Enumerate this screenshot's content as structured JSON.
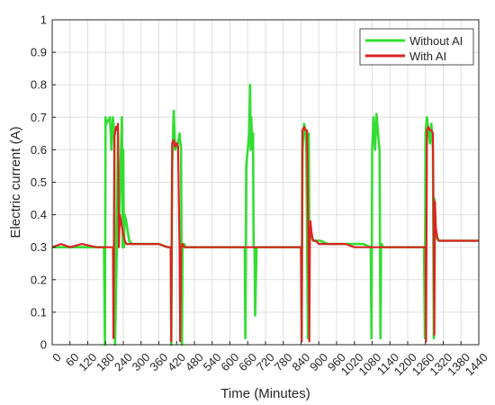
{
  "chart_data": {
    "type": "line",
    "title": "",
    "xlabel": "Time (Minutes)",
    "ylabel": "Electric current (A)",
    "xlim": [
      0,
      1440
    ],
    "ylim": [
      0,
      1
    ],
    "x_ticks": [
      0,
      60,
      120,
      180,
      240,
      300,
      360,
      420,
      480,
      540,
      600,
      660,
      720,
      780,
      840,
      900,
      960,
      1020,
      1080,
      1140,
      1200,
      1260,
      1320,
      1380,
      1440
    ],
    "y_ticks": [
      0,
      0.1,
      0.2,
      0.3,
      0.4,
      0.5,
      0.6,
      0.7,
      0.8,
      0.9,
      1
    ],
    "x_tick_labels": [
      "0",
      "60",
      "120",
      "180",
      "240",
      "300",
      "360",
      "420",
      "480",
      "540",
      "600",
      "660",
      "720",
      "780",
      "840",
      "900",
      "960",
      "1020",
      "1080",
      "1140",
      "1200",
      "1260",
      "1320",
      "1380",
      "1440"
    ],
    "y_tick_labels": [
      "0",
      "0.1",
      "0.2",
      "0.3",
      "0.4",
      "0.5",
      "0.6",
      "0.7",
      "0.8",
      "0.9",
      "1"
    ],
    "grid": true,
    "legend_position": "top-right",
    "series": [
      {
        "name": "Without AI",
        "color": "#33dd33",
        "x": [
          0,
          30,
          60,
          100,
          150,
          175,
          178,
          180,
          182,
          195,
          200,
          205,
          210,
          212,
          218,
          222,
          225,
          235,
          238,
          240,
          242,
          245,
          250,
          255,
          260,
          270,
          285,
          300,
          330,
          360,
          390,
          400,
          402,
          405,
          410,
          415,
          425,
          430,
          435,
          438,
          440,
          445,
          450,
          480,
          510,
          540,
          570,
          600,
          630,
          650,
          652,
          655,
          660,
          665,
          668,
          670,
          672,
          675,
          678,
          680,
          683,
          685,
          690,
          700,
          730,
          760,
          790,
          820,
          840,
          842,
          845,
          850,
          855,
          858,
          860,
          863,
          866,
          868,
          870,
          872,
          875,
          880,
          890,
          905,
          930,
          960,
          990,
          1020,
          1050,
          1075,
          1078,
          1080,
          1085,
          1090,
          1095,
          1100,
          1105,
          1108,
          1110,
          1113,
          1115,
          1120,
          1150,
          1180,
          1210,
          1240,
          1255,
          1258,
          1260,
          1265,
          1270,
          1275,
          1280,
          1285,
          1288,
          1290,
          1293,
          1295,
          1305,
          1320,
          1350,
          1380,
          1410,
          1440
        ],
        "y": [
          0.3,
          0.3,
          0.3,
          0.3,
          0.3,
          0.3,
          0,
          0.7,
          0.68,
          0.7,
          0.6,
          0.7,
          0.65,
          0,
          0.3,
          0.65,
          0.35,
          0.7,
          0.3,
          0.6,
          0.3,
          0.4,
          0.38,
          0.35,
          0.32,
          0.31,
          0.31,
          0.31,
          0.31,
          0.31,
          0.3,
          0.3,
          0,
          0.55,
          0.72,
          0.6,
          0.62,
          0.65,
          0.6,
          0,
          0.3,
          0.31,
          0.3,
          0.3,
          0.3,
          0.3,
          0.3,
          0.3,
          0.3,
          0.3,
          0.02,
          0.55,
          0.6,
          0.65,
          0.8,
          0.6,
          0.7,
          0.6,
          0.65,
          0.3,
          0.3,
          0.09,
          0.3,
          0.3,
          0.3,
          0.3,
          0.3,
          0.3,
          0.3,
          0.02,
          0.6,
          0.68,
          0.66,
          0.6,
          0.35,
          0.02,
          0.65,
          0.3,
          0.38,
          0.36,
          0.33,
          0.32,
          0.32,
          0.32,
          0.31,
          0.31,
          0.31,
          0.31,
          0.31,
          0.3,
          0.02,
          0.6,
          0.7,
          0.6,
          0.71,
          0.65,
          0.6,
          0.02,
          0.3,
          0.31,
          0.3,
          0.3,
          0.3,
          0.3,
          0.3,
          0.3,
          0.3,
          0.02,
          0.65,
          0.7,
          0.66,
          0.62,
          0.68,
          0.6,
          0.02,
          0.45,
          0.35,
          0.33,
          0.32,
          0.32,
          0.32,
          0.32,
          0.32,
          0.32
        ]
      },
      {
        "name": "With AI",
        "color": "#dd2222",
        "x": [
          0,
          30,
          60,
          100,
          150,
          180,
          182,
          185,
          200,
          205,
          207,
          210,
          212,
          215,
          218,
          222,
          225,
          228,
          232,
          240,
          245,
          250,
          255,
          260,
          270,
          285,
          300,
          330,
          360,
          390,
          400,
          402,
          405,
          410,
          415,
          420,
          425,
          430,
          432,
          435,
          440,
          445,
          450,
          480,
          510,
          540,
          570,
          600,
          630,
          660,
          690,
          720,
          750,
          780,
          810,
          840,
          842,
          845,
          850,
          855,
          860,
          865,
          868,
          870,
          872,
          875,
          878,
          882,
          890,
          900,
          930,
          960,
          990,
          1020,
          1050,
          1080,
          1110,
          1140,
          1170,
          1200,
          1230,
          1260,
          1262,
          1265,
          1270,
          1275,
          1280,
          1285,
          1288,
          1290,
          1292,
          1295,
          1300,
          1305,
          1310,
          1320,
          1350,
          1380,
          1410,
          1440
        ],
        "y": [
          0.3,
          0.31,
          0.3,
          0.31,
          0.3,
          0.3,
          0.3,
          0.3,
          0.3,
          0.3,
          0.02,
          0.64,
          0.65,
          0.67,
          0.66,
          0.68,
          0.3,
          0.4,
          0.38,
          0.34,
          0.32,
          0.31,
          0.31,
          0.31,
          0.31,
          0.31,
          0.31,
          0.31,
          0.31,
          0.3,
          0.3,
          0.01,
          0.62,
          0.63,
          0.61,
          0.62,
          0.61,
          0.3,
          0.01,
          0.3,
          0.31,
          0.3,
          0.3,
          0.3,
          0.3,
          0.3,
          0.3,
          0.3,
          0.3,
          0.3,
          0.3,
          0.3,
          0.3,
          0.3,
          0.3,
          0.3,
          0.01,
          0.66,
          0.67,
          0.66,
          0.66,
          0.3,
          0.01,
          0.35,
          0.38,
          0.35,
          0.33,
          0.32,
          0.32,
          0.31,
          0.31,
          0.31,
          0.31,
          0.3,
          0.3,
          0.3,
          0.3,
          0.3,
          0.3,
          0.3,
          0.3,
          0.3,
          0.01,
          0.66,
          0.67,
          0.66,
          0.66,
          0.65,
          0.3,
          0.03,
          0.44,
          0.36,
          0.33,
          0.32,
          0.32,
          0.32,
          0.32,
          0.32,
          0.32,
          0.32
        ]
      }
    ]
  }
}
